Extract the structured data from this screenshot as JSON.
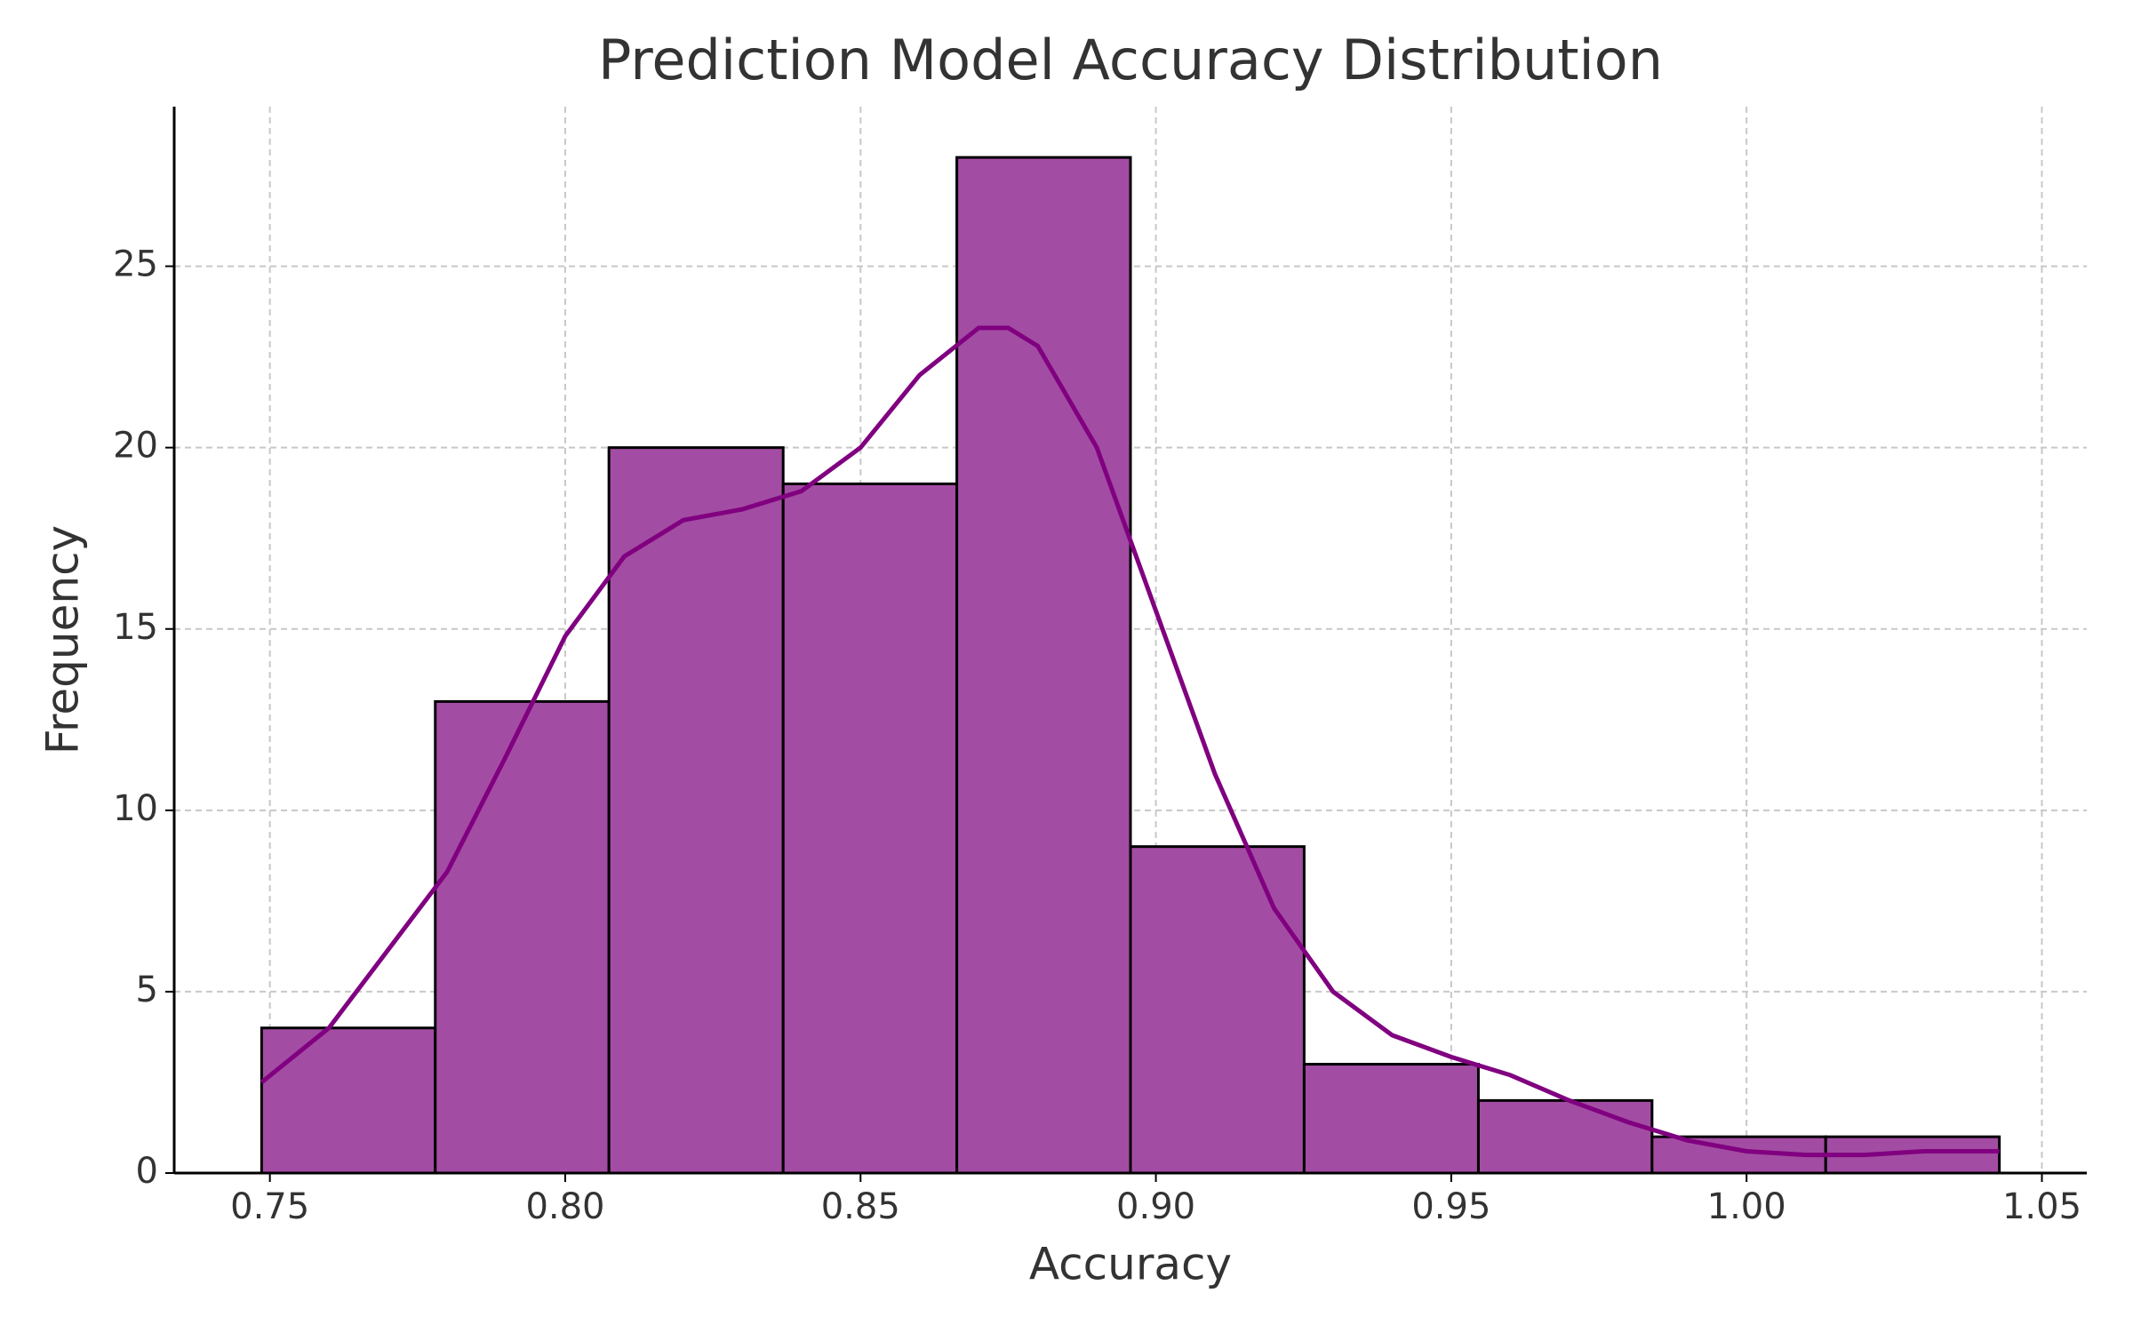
{
  "chart_data": {
    "type": "histogram",
    "title": "Prediction Model Accuracy Distribution",
    "x_label": "Accuracy",
    "y_label": "Frequency",
    "bins": [
      0.7486,
      0.778,
      0.8074,
      0.8369,
      0.8663,
      0.8957,
      0.9251,
      0.9546,
      0.984,
      1.0134,
      1.0428
    ],
    "counts": [
      4,
      13,
      20,
      19,
      28,
      9,
      3,
      2,
      1,
      1
    ],
    "color": "#a34ca3",
    "edgecolor": "#000000",
    "kde": {
      "color": "#800080",
      "x": [
        0.7486,
        0.76,
        0.78,
        0.79,
        0.8,
        0.81,
        0.82,
        0.83,
        0.84,
        0.85,
        0.86,
        0.87,
        0.875,
        0.88,
        0.89,
        0.9,
        0.91,
        0.92,
        0.93,
        0.94,
        0.95,
        0.96,
        0.97,
        0.98,
        0.99,
        1.0,
        1.01,
        1.02,
        1.03,
        1.0428
      ],
      "values": [
        2.5,
        4,
        8.3,
        11.5,
        14.8,
        17,
        18,
        18.3,
        18.8,
        20,
        22,
        23.3,
        23.3,
        22.8,
        20,
        15.5,
        11,
        7.3,
        5,
        3.8,
        3.2,
        2.7,
        2,
        1.4,
        0.9,
        0.6,
        0.5,
        0.5,
        0.6,
        0.6
      ]
    },
    "xlim": [
      0.7338,
      1.0576
    ],
    "ylim": [
      0,
      29.4
    ],
    "xticks": [
      0.75,
      {
        "value": 0.8,
        "label": "0.80"
      },
      0.85,
      {
        "value": 0.9,
        "label": "0.90"
      },
      0.95,
      {
        "value": 1.0,
        "label": "1.00"
      },
      1.05
    ],
    "yticks": [
      0,
      5,
      10,
      15,
      20,
      25
    ],
    "grid": true
  }
}
